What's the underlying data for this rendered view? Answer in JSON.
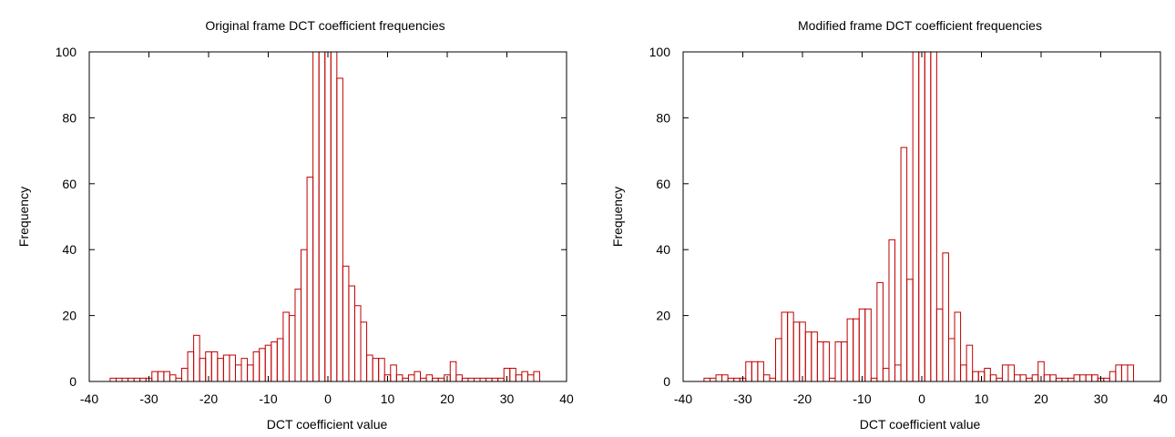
{
  "chart_data": [
    {
      "type": "bar",
      "title": "Original frame DCT coefficient frequencies",
      "xlabel": "DCT coefficient value",
      "ylabel": "Frequency",
      "xlim": [
        -40,
        40
      ],
      "ylim": [
        0,
        100
      ],
      "xticks": [
        "-40",
        "-30",
        "-20",
        "-10",
        "0",
        "10",
        "20",
        "30",
        "40"
      ],
      "yticks": [
        "0",
        "20",
        "40",
        "60",
        "80",
        "100"
      ],
      "bar_color": "#c00000",
      "series": [
        {
          "x": [
            -36,
            -35,
            -34,
            -33,
            -32,
            -31,
            -30,
            -29,
            -28,
            -27,
            -26,
            -25,
            -24,
            -23,
            -22,
            -21,
            -20,
            -19,
            -18,
            -17,
            -16,
            -15,
            -14,
            -13,
            -12,
            -11,
            -10,
            -9,
            -8,
            -7,
            -6,
            -5,
            -4,
            -3,
            -2,
            -1,
            0,
            1,
            2,
            3,
            4,
            5,
            6,
            7,
            8,
            9,
            10,
            11,
            12,
            13,
            14,
            15,
            16,
            17,
            18,
            19,
            20,
            21,
            22,
            23,
            24,
            25,
            26,
            27,
            28,
            29,
            30,
            31,
            32,
            33,
            34,
            35
          ],
          "values": [
            1,
            1,
            1,
            1,
            1,
            1,
            1,
            3,
            3,
            3,
            2,
            1,
            4,
            9,
            14,
            7,
            9,
            9,
            7,
            8,
            8,
            5,
            7,
            5,
            9,
            10,
            11,
            12,
            13,
            21,
            20,
            28,
            40,
            62,
            100,
            100,
            100,
            100,
            92,
            35,
            29,
            23,
            18,
            8,
            7,
            7,
            2,
            5,
            2,
            1,
            2,
            3,
            1,
            2,
            1,
            1,
            2,
            6,
            2,
            1,
            1,
            1,
            1,
            1,
            1,
            1,
            4,
            4,
            2,
            3,
            2,
            3
          ]
        }
      ]
    },
    {
      "type": "bar",
      "title": "Modified frame DCT coefficient frequencies",
      "xlabel": "DCT coefficient value",
      "ylabel": "Frequency",
      "xlim": [
        -40,
        40
      ],
      "ylim": [
        0,
        100
      ],
      "xticks": [
        "-40",
        "-30",
        "-20",
        "-10",
        "0",
        "10",
        "20",
        "30",
        "40"
      ],
      "yticks": [
        "0",
        "20",
        "40",
        "60",
        "80",
        "100"
      ],
      "bar_color": "#c00000",
      "series": [
        {
          "x": [
            -36,
            -35,
            -34,
            -33,
            -32,
            -31,
            -30,
            -29,
            -28,
            -27,
            -26,
            -25,
            -24,
            -23,
            -22,
            -21,
            -20,
            -19,
            -18,
            -17,
            -16,
            -15,
            -14,
            -13,
            -12,
            -11,
            -10,
            -9,
            -8,
            -7,
            -6,
            -5,
            -4,
            -3,
            -2,
            -1,
            0,
            1,
            2,
            3,
            4,
            5,
            6,
            7,
            8,
            9,
            10,
            11,
            12,
            13,
            14,
            15,
            16,
            17,
            18,
            19,
            20,
            21,
            22,
            23,
            24,
            25,
            26,
            27,
            28,
            29,
            30,
            31,
            32,
            33,
            34,
            35
          ],
          "values": [
            1,
            1,
            2,
            2,
            1,
            1,
            1,
            6,
            6,
            6,
            2,
            1,
            13,
            21,
            21,
            18,
            18,
            15,
            15,
            12,
            12,
            1,
            12,
            12,
            19,
            19,
            22,
            22,
            1,
            30,
            4,
            43,
            5,
            71,
            31,
            100,
            100,
            100,
            100,
            22,
            39,
            13,
            21,
            5,
            11,
            3,
            3,
            4,
            2,
            1,
            5,
            5,
            2,
            2,
            1,
            2,
            6,
            2,
            2,
            1,
            1,
            1,
            2,
            2,
            2,
            2,
            1,
            1,
            3,
            5,
            5,
            5
          ]
        }
      ]
    }
  ]
}
